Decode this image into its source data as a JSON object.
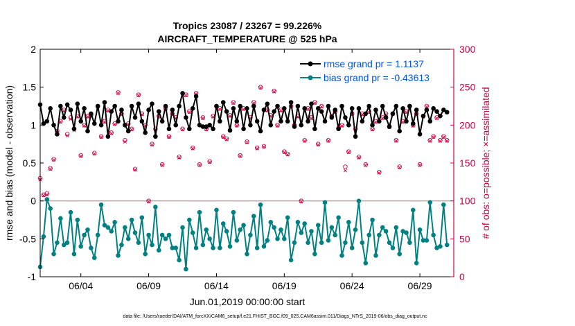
{
  "chart_data": {
    "type": "line",
    "title_line1": "Tropics 23087 / 23267 = 99.226%",
    "title_line2": "AIRCRAFT_TEMPERATURE @ 525 hPa",
    "xlabel": "Jun.01,2019 00:00:00 start",
    "ylabel_left": "rmse and bias (model - observation)",
    "ylabel_right": "# of obs: o=possible; ×=assimilated",
    "xlim": [
      0,
      30.5
    ],
    "ylim_left": [
      -1,
      2
    ],
    "ylim_right": [
      0,
      300
    ],
    "x_ticks": [
      {
        "value": 3,
        "label": "06/04"
      },
      {
        "value": 8,
        "label": "06/09"
      },
      {
        "value": 13,
        "label": "06/14"
      },
      {
        "value": 18,
        "label": "06/19"
      },
      {
        "value": 23,
        "label": "06/24"
      },
      {
        "value": 28,
        "label": "06/29"
      }
    ],
    "y_ticks_left": [
      -1,
      -0.5,
      0,
      0.5,
      1,
      1.5,
      2
    ],
    "y_tick_labels_left": [
      "-1",
      "-0.5",
      "0",
      "0.5",
      "1",
      "1.5",
      "2"
    ],
    "y_ticks_right": [
      0,
      50,
      100,
      150,
      200,
      250,
      300
    ],
    "y_tick_labels_right": [
      "0",
      "50",
      "100",
      "150",
      "200",
      "250",
      "300"
    ],
    "zero_line": 0,
    "legend": [
      {
        "label": "rmse grand pr = 1.1137",
        "color": "#000000"
      },
      {
        "label": "bias grand pr = -0.43613",
        "color": "#008080"
      }
    ],
    "series": [
      {
        "name": "rmse",
        "axis": "left",
        "color": "#000000",
        "x": [
          0.0,
          0.25,
          0.5,
          0.75,
          1.0,
          1.25,
          1.5,
          1.75,
          2.0,
          2.25,
          2.5,
          2.75,
          3.0,
          3.25,
          3.5,
          3.75,
          4.0,
          4.25,
          4.5,
          4.75,
          5.0,
          5.25,
          5.5,
          5.75,
          6.0,
          6.25,
          6.5,
          6.75,
          7.0,
          7.25,
          7.5,
          7.75,
          8.0,
          8.25,
          8.5,
          8.75,
          9.0,
          9.25,
          9.5,
          9.75,
          10.0,
          10.25,
          10.5,
          10.75,
          11.0,
          11.25,
          11.5,
          11.75,
          12.0,
          12.25,
          12.5,
          12.75,
          13.0,
          13.25,
          13.5,
          13.75,
          14.0,
          14.25,
          14.5,
          14.75,
          15.0,
          15.25,
          15.5,
          15.75,
          16.0,
          16.25,
          16.5,
          16.75,
          17.0,
          17.25,
          17.5,
          17.75,
          18.0,
          18.25,
          18.5,
          18.75,
          19.0,
          19.25,
          19.5,
          19.75,
          20.0,
          20.25,
          20.5,
          20.75,
          21.0,
          21.25,
          21.5,
          21.75,
          22.0,
          22.25,
          22.5,
          22.75,
          23.0,
          23.25,
          23.5,
          23.75,
          24.0,
          24.25,
          24.5,
          24.75,
          25.0,
          25.25,
          25.5,
          25.75,
          26.0,
          26.25,
          26.5,
          26.75,
          27.0,
          27.25,
          27.5,
          27.75,
          28.0,
          28.25,
          28.5,
          28.75,
          29.0,
          29.25,
          29.5,
          29.75,
          30.0
        ],
        "values": [
          1.27,
          1.02,
          1.05,
          1.22,
          1.0,
          0.88,
          1.25,
          1.1,
          1.27,
          1.2,
          0.95,
          1.28,
          1.05,
          1.22,
          0.92,
          1.15,
          1.02,
          1.25,
          1.0,
          1.3,
          0.85,
          1.18,
          1.25,
          1.05,
          1.2,
          1.0,
          0.92,
          1.25,
          1.1,
          1.28,
          1.05,
          0.9,
          1.2,
          1.28,
          0.85,
          1.18,
          1.05,
          1.25,
          0.95,
          1.2,
          1.0,
          1.25,
          1.42,
          1.1,
          0.95,
          1.22,
          1.38,
          1.0,
          0.98,
          0.98,
          1.0,
          0.95,
          1.25,
          1.05,
          1.3,
          1.18,
          0.93,
          1.22,
          1.05,
          1.25,
          0.95,
          1.22,
          1.0,
          1.25,
          1.05,
          0.92,
          1.2,
          1.28,
          1.0,
          1.18,
          1.25,
          1.05,
          1.22,
          1.05,
          1.3,
          0.98,
          1.25,
          1.0,
          1.22,
          1.05,
          1.28,
          0.95,
          1.22,
          1.18,
          1.05,
          1.25,
          1.1,
          1.2,
          0.95,
          1.25,
          1.1,
          1.0,
          1.22,
          0.85,
          1.22,
          1.05,
          1.15,
          1.25,
          1.0,
          1.2,
          1.05,
          1.25,
          1.1,
          0.98,
          1.15,
          1.25,
          0.92,
          1.22,
          1.05,
          1.25,
          1.02,
          1.2,
          0.88,
          1.12,
          1.2,
          1.05,
          1.22,
          1.18,
          1.12,
          1.2,
          1.17
        ]
      },
      {
        "name": "bias",
        "axis": "left",
        "color": "#008080",
        "x": [
          0.0,
          0.25,
          0.5,
          0.75,
          1.0,
          1.25,
          1.5,
          1.75,
          2.0,
          2.25,
          2.5,
          2.75,
          3.0,
          3.25,
          3.5,
          3.75,
          4.0,
          4.25,
          4.5,
          4.75,
          5.0,
          5.25,
          5.5,
          5.75,
          6.0,
          6.25,
          6.5,
          6.75,
          7.0,
          7.25,
          7.5,
          7.75,
          8.0,
          8.25,
          8.5,
          8.75,
          9.0,
          9.25,
          9.5,
          9.75,
          10.0,
          10.25,
          10.5,
          10.75,
          11.0,
          11.25,
          11.5,
          11.75,
          12.0,
          12.25,
          12.5,
          12.75,
          13.0,
          13.25,
          13.5,
          13.75,
          14.0,
          14.25,
          14.5,
          14.75,
          15.0,
          15.25,
          15.5,
          15.75,
          16.0,
          16.25,
          16.5,
          16.75,
          17.0,
          17.25,
          17.5,
          17.75,
          18.0,
          18.25,
          18.5,
          18.75,
          19.0,
          19.25,
          19.5,
          19.75,
          20.0,
          20.25,
          20.5,
          20.75,
          21.0,
          21.25,
          21.5,
          21.75,
          22.0,
          22.25,
          22.5,
          22.75,
          23.0,
          23.25,
          23.5,
          23.75,
          24.0,
          24.25,
          24.5,
          24.75,
          25.0,
          25.25,
          25.5,
          25.75,
          26.0,
          26.25,
          26.5,
          26.75,
          27.0,
          27.25,
          27.5,
          27.75,
          28.0,
          28.25,
          28.5,
          28.75,
          29.0,
          29.25,
          29.5,
          29.75,
          30.0
        ],
        "values": [
          -0.87,
          -0.47,
          0.02,
          -0.1,
          -0.7,
          -0.55,
          -0.23,
          -0.58,
          -0.55,
          -0.15,
          -0.7,
          -0.25,
          -0.6,
          -0.45,
          -0.38,
          -0.62,
          -0.75,
          -0.45,
          -0.05,
          -0.32,
          -0.35,
          -0.4,
          -0.28,
          -0.72,
          -0.58,
          -0.35,
          -0.5,
          -0.25,
          -0.42,
          -0.55,
          -0.22,
          -0.7,
          -0.45,
          -0.58,
          -0.08,
          -0.65,
          -0.45,
          -0.5,
          -0.45,
          -0.62,
          -0.62,
          -0.78,
          -0.35,
          -0.9,
          -0.25,
          -0.42,
          -0.62,
          -0.15,
          -0.58,
          -0.38,
          -0.5,
          -0.62,
          -0.12,
          -0.62,
          -0.3,
          -0.4,
          -0.6,
          -0.15,
          -0.52,
          -0.38,
          -0.32,
          -0.7,
          -0.45,
          -0.2,
          -0.62,
          -0.05,
          -0.6,
          -0.52,
          -0.28,
          -0.35,
          -0.5,
          -0.38,
          -0.5,
          -0.22,
          -0.78,
          -0.55,
          -0.28,
          -0.42,
          -0.3,
          -0.55,
          -0.4,
          -0.7,
          -0.32,
          -0.55,
          -0.02,
          -0.52,
          -0.35,
          -0.45,
          -0.22,
          -0.72,
          -0.55,
          -0.28,
          -0.62,
          -0.38,
          0.0,
          -0.55,
          -0.82,
          -0.45,
          -0.25,
          -0.72,
          -0.45,
          -0.35,
          -0.4,
          -0.55,
          -0.62,
          -0.35,
          -0.7,
          -0.4,
          -0.42,
          -0.55,
          -0.12,
          -0.82,
          -0.38,
          -0.52,
          -0.52,
          -0.02,
          -0.45,
          -0.62,
          -0.6,
          -0.05,
          -0.58
        ]
      },
      {
        "name": "possible",
        "axis": "right",
        "color": "#cc0044",
        "marker": "o",
        "x": [
          0.0,
          0.25,
          0.5,
          0.75,
          1.0,
          1.25,
          1.5,
          1.75,
          2.0,
          2.25,
          2.5,
          2.75,
          3.0,
          3.25,
          3.5,
          3.75,
          4.0,
          4.25,
          4.5,
          4.75,
          5.0,
          5.25,
          5.5,
          5.75,
          6.0,
          6.25,
          6.5,
          6.75,
          7.0,
          7.25,
          7.5,
          7.75,
          8.0,
          8.25,
          8.5,
          8.75,
          9.0,
          9.25,
          9.5,
          9.75,
          10.0,
          10.25,
          10.5,
          10.75,
          11.0,
          11.25,
          11.5,
          11.75,
          12.0,
          12.25,
          12.5,
          12.75,
          13.0,
          13.25,
          13.5,
          13.75,
          14.0,
          14.25,
          14.5,
          14.75,
          15.0,
          15.25,
          15.5,
          15.75,
          16.0,
          16.25,
          16.5,
          16.75,
          17.0,
          17.25,
          17.5,
          17.75,
          18.0,
          18.25,
          18.5,
          18.75,
          19.0,
          19.25,
          19.5,
          19.75,
          20.0,
          20.25,
          20.5,
          20.75,
          21.0,
          21.25,
          21.5,
          21.75,
          22.0,
          22.25,
          22.5,
          22.75,
          23.0,
          23.25,
          23.5,
          23.75,
          24.0,
          24.25,
          24.5,
          24.75,
          25.0,
          25.25,
          25.5,
          25.75,
          26.0,
          26.25,
          26.5,
          26.75,
          27.0,
          27.25,
          27.5,
          27.75,
          28.0,
          28.25,
          28.5,
          28.75,
          29.0,
          29.25,
          29.5,
          29.75,
          30.0
        ],
        "values": [
          130,
          108,
          110,
          143,
          155,
          192,
          205,
          220,
          188,
          210,
          195,
          212,
          160,
          200,
          212,
          213,
          163,
          225,
          185,
          205,
          220,
          190,
          202,
          243,
          215,
          180,
          202,
          195,
          142,
          240,
          215,
          200,
          100,
          175,
          195,
          212,
          148,
          222,
          185,
          215,
          210,
          158,
          195,
          240,
          218,
          170,
          242,
          148,
          210,
          195,
          152,
          212,
          225,
          222,
          185,
          182,
          213,
          230,
          200,
          160,
          222,
          178,
          210,
          230,
          170,
          250,
          172,
          220,
          213,
          245,
          200,
          220,
          165,
          162,
          225,
          200,
          212,
          100,
          180,
          222,
          210,
          230,
          175,
          225,
          258,
          180,
          212,
          218,
          196,
          200,
          145,
          165,
          215,
          195,
          158,
          215,
          148,
          218,
          195,
          205,
          138,
          210,
          215,
          198,
          215,
          180,
          145,
          205,
          218,
          225,
          200,
          215,
          148,
          212,
          225,
          180,
          185,
          210,
          180,
          185,
          180
        ]
      },
      {
        "name": "assimilated",
        "axis": "right",
        "color": "#cc0044",
        "marker": "x",
        "x": [
          0.0,
          0.25,
          0.5,
          0.75,
          1.0,
          1.25,
          1.5,
          1.75,
          2.0,
          2.25,
          2.5,
          2.75,
          3.0,
          3.25,
          3.5,
          3.75,
          4.0,
          4.25,
          4.5,
          4.75,
          5.0,
          5.25,
          5.5,
          5.75,
          6.0,
          6.25,
          6.5,
          6.75,
          7.0,
          7.25,
          7.5,
          7.75,
          8.0,
          8.25,
          8.5,
          8.75,
          9.0,
          9.25,
          9.5,
          9.75,
          10.0,
          10.25,
          10.5,
          10.75,
          11.0,
          11.25,
          11.5,
          11.75,
          12.0,
          12.25,
          12.5,
          12.75,
          13.0,
          13.25,
          13.5,
          13.75,
          14.0,
          14.25,
          14.5,
          14.75,
          15.0,
          15.25,
          15.5,
          15.75,
          16.0,
          16.25,
          16.5,
          16.75,
          17.0,
          17.25,
          17.5,
          17.75,
          18.0,
          18.25,
          18.5,
          18.75,
          19.0,
          19.25,
          19.5,
          19.75,
          20.0,
          20.25,
          20.5,
          20.75,
          21.0,
          21.25,
          21.5,
          21.75,
          22.0,
          22.25,
          22.5,
          22.75,
          23.0,
          23.25,
          23.5,
          23.75,
          24.0,
          24.25,
          24.5,
          24.75,
          25.0,
          25.25,
          25.5,
          25.75,
          26.0,
          26.25,
          26.5,
          26.75,
          27.0,
          27.25,
          27.5,
          27.75,
          28.0,
          28.25,
          28.5,
          28.75,
          29.0,
          29.25,
          29.5,
          29.75,
          30.0
        ],
        "values": [
          128,
          107,
          108,
          142,
          154,
          190,
          204,
          219,
          186,
          208,
          193,
          211,
          159,
          199,
          211,
          212,
          162,
          224,
          184,
          204,
          219,
          189,
          201,
          242,
          214,
          178,
          201,
          194,
          141,
          239,
          214,
          199,
          99,
          174,
          194,
          211,
          147,
          221,
          184,
          214,
          209,
          157,
          194,
          239,
          217,
          169,
          241,
          147,
          209,
          194,
          151,
          211,
          224,
          221,
          184,
          181,
          212,
          229,
          199,
          159,
          221,
          177,
          209,
          229,
          169,
          249,
          171,
          219,
          212,
          244,
          199,
          219,
          164,
          161,
          224,
          199,
          211,
          99,
          179,
          221,
          209,
          229,
          174,
          224,
          257,
          179,
          211,
          217,
          195,
          199,
          140,
          164,
          214,
          194,
          157,
          214,
          147,
          217,
          194,
          204,
          137,
          209,
          214,
          197,
          214,
          179,
          144,
          204,
          217,
          224,
          199,
          214,
          147,
          211,
          224,
          179,
          184,
          209,
          179,
          184,
          179
        ]
      }
    ],
    "footer": "data file: /Users/raeder/DAI/ATM_forcXX/CAM6_setup/f.e21.FHIST_BGC.f09_025.CAM6assim.011/Diags_NTrS_2019-06/obs_diag_output.nc"
  }
}
